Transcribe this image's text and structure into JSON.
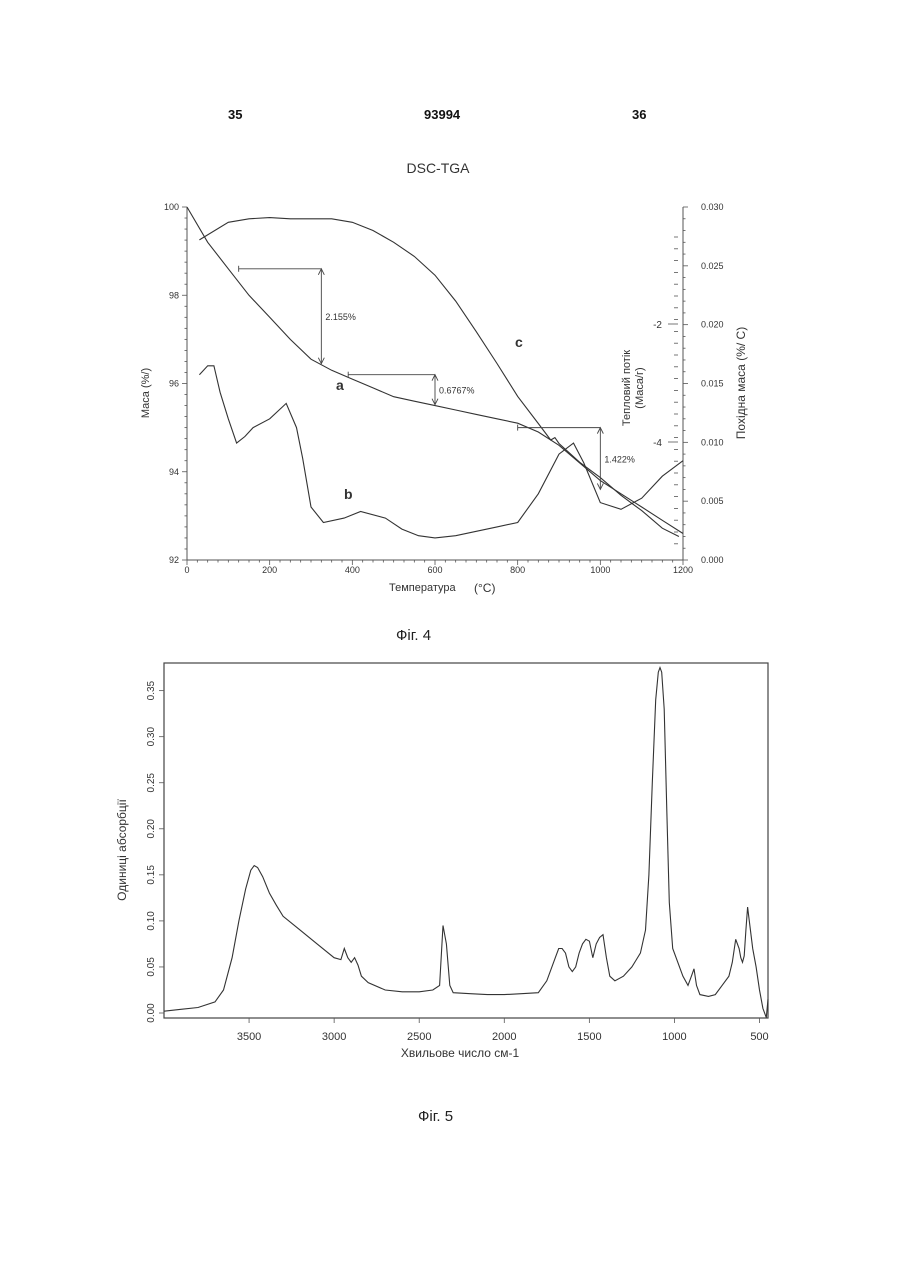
{
  "header": {
    "page_left": "35",
    "doc_number": "93994",
    "page_right": "36"
  },
  "fig4": {
    "caption": "Фiг. 4",
    "title": "DSC-TGA",
    "xlabel": "Температура",
    "xunit": "(°C)",
    "ylabel_left": "Маса (%/)",
    "ylabel_mid": "Тепловий потік (Маса/г)",
    "ylabel_right": "Похідна маса (%/ C)",
    "x_ticks": [
      "0",
      "200",
      "400",
      "600",
      "800",
      "1000",
      "1200"
    ],
    "y_left_ticks": [
      "100",
      "98",
      "96",
      "94",
      "92"
    ],
    "y_right_ticks": [
      "0.030",
      "0.025",
      "0.020",
      "0.015",
      "0.010",
      "0.005",
      "0.000"
    ],
    "y_mid_ticks": [
      "-2",
      "-4"
    ],
    "curve_labels": [
      "a",
      "b",
      "c"
    ],
    "annotations": [
      "2.155%",
      "0.6767%",
      "1.422%"
    ]
  },
  "fig5": {
    "caption": "Фiг. 5",
    "xlabel": "Хвильове число см-1",
    "ylabel": "Одиниці абсорбції",
    "x_ticks": [
      "3500",
      "3000",
      "2500",
      "2000",
      "1500",
      "1000",
      "500"
    ],
    "y_ticks": [
      "0.00",
      "0.05",
      "0.10",
      "0.15",
      "0.20",
      "0.25",
      "0.30",
      "0.35"
    ]
  },
  "chart_data": [
    {
      "type": "line",
      "title": "DSC-TGA",
      "xlabel": "Температура (°C)",
      "ylabel": "Маса (%/)",
      "xlim": [
        0,
        1200
      ],
      "ylim": [
        92,
        100
      ],
      "y2label": "Похідна маса (%/ C)",
      "y2lim": [
        0,
        0.03
      ],
      "series": [
        {
          "name": "a",
          "x": [
            0,
            50,
            100,
            150,
            200,
            250,
            300,
            350,
            400,
            450,
            500,
            550,
            600,
            650,
            700,
            750,
            800,
            850,
            900,
            950,
            1000,
            1050,
            1100,
            1150,
            1200
          ],
          "y": [
            100.0,
            99.2,
            98.6,
            98.0,
            97.5,
            97.0,
            96.55,
            96.3,
            96.1,
            95.9,
            95.7,
            95.6,
            95.5,
            95.4,
            95.3,
            95.2,
            95.1,
            94.9,
            94.6,
            94.2,
            93.8,
            93.5,
            93.2,
            92.9,
            92.6
          ]
        },
        {
          "name": "c",
          "x": [
            30,
            100,
            150,
            200,
            250,
            300,
            350,
            400,
            450,
            500,
            550,
            600,
            650,
            700,
            750,
            800,
            850,
            880,
            890,
            900,
            950,
            1000,
            1050,
            1100,
            1150,
            1190
          ],
          "y2": [
            0.0272,
            0.0287,
            0.029,
            0.0291,
            0.029,
            0.029,
            0.029,
            0.0287,
            0.028,
            0.027,
            0.0258,
            0.0242,
            0.022,
            0.0194,
            0.0167,
            0.0139,
            0.0116,
            0.0102,
            0.0104,
            0.0099,
            0.0083,
            0.007,
            0.0055,
            0.0042,
            0.0027,
            0.002
          ]
        },
        {
          "name": "b",
          "x": [
            30,
            50,
            65,
            80,
            100,
            120,
            140,
            160,
            200,
            240,
            265,
            280,
            300,
            330,
            380,
            420,
            480,
            520,
            560,
            600,
            650,
            700,
            750,
            800,
            850,
            900,
            935,
            960,
            1000,
            1050,
            1100,
            1150,
            1200
          ],
          "y": [
            96.2,
            96.4,
            96.4,
            95.8,
            95.2,
            94.65,
            94.8,
            95.0,
            95.2,
            95.55,
            95.0,
            94.3,
            93.2,
            92.85,
            92.95,
            93.1,
            92.95,
            92.7,
            92.55,
            92.5,
            92.55,
            92.65,
            92.75,
            92.85,
            93.5,
            94.4,
            94.65,
            94.2,
            93.3,
            93.15,
            93.4,
            93.9,
            94.25
          ]
        }
      ],
      "steps": [
        {
          "label": "2.155%",
          "x_from": 125,
          "x_to": 325,
          "y_from": 98.6,
          "y_to": 96.45
        },
        {
          "label": "0.6767%",
          "x_from": 390,
          "x_to": 600,
          "y_from": 96.2,
          "y_to": 95.52
        },
        {
          "label": "1.422%",
          "x_from": 800,
          "x_to": 1000,
          "y_from": 95.0,
          "y_to": 93.6
        }
      ],
      "grid": false
    },
    {
      "type": "line",
      "title": "",
      "xlabel": "Хвильове число см-1",
      "ylabel": "Одиниці абсорбції",
      "xlim": [
        4000,
        450
      ],
      "ylim": [
        0,
        0.38
      ],
      "x": [
        4000,
        3900,
        3800,
        3700,
        3650,
        3600,
        3560,
        3520,
        3490,
        3470,
        3450,
        3420,
        3380,
        3340,
        3300,
        3200,
        3100,
        3000,
        2960,
        2940,
        2920,
        2900,
        2880,
        2860,
        2840,
        2800,
        2700,
        2600,
        2500,
        2420,
        2380,
        2360,
        2350,
        2340,
        2320,
        2300,
        2200,
        2100,
        2000,
        1900,
        1800,
        1750,
        1700,
        1680,
        1660,
        1640,
        1620,
        1600,
        1580,
        1560,
        1540,
        1520,
        1500,
        1480,
        1460,
        1440,
        1420,
        1400,
        1380,
        1350,
        1300,
        1250,
        1200,
        1170,
        1150,
        1130,
        1110,
        1095,
        1085,
        1075,
        1060,
        1045,
        1030,
        1010,
        990,
        970,
        950,
        920,
        900,
        885,
        870,
        850,
        800,
        760,
        720,
        680,
        660,
        640,
        620,
        610,
        600,
        590,
        580,
        570,
        560,
        540,
        520,
        500,
        480,
        460,
        450
      ],
      "y": [
        0.002,
        0.004,
        0.006,
        0.012,
        0.025,
        0.06,
        0.1,
        0.135,
        0.155,
        0.16,
        0.158,
        0.148,
        0.13,
        0.117,
        0.105,
        0.09,
        0.075,
        0.06,
        0.058,
        0.07,
        0.06,
        0.055,
        0.06,
        0.052,
        0.04,
        0.033,
        0.025,
        0.023,
        0.023,
        0.025,
        0.03,
        0.095,
        0.085,
        0.075,
        0.03,
        0.022,
        0.021,
        0.02,
        0.02,
        0.021,
        0.022,
        0.035,
        0.06,
        0.07,
        0.07,
        0.065,
        0.05,
        0.045,
        0.05,
        0.065,
        0.075,
        0.08,
        0.078,
        0.06,
        0.075,
        0.082,
        0.085,
        0.06,
        0.04,
        0.035,
        0.04,
        0.05,
        0.065,
        0.09,
        0.15,
        0.25,
        0.34,
        0.37,
        0.375,
        0.37,
        0.33,
        0.22,
        0.12,
        0.07,
        0.06,
        0.05,
        0.04,
        0.03,
        0.04,
        0.048,
        0.03,
        0.02,
        0.018,
        0.02,
        0.03,
        0.04,
        0.055,
        0.08,
        0.07,
        0.06,
        0.055,
        0.062,
        0.09,
        0.115,
        0.1,
        0.07,
        0.05,
        0.025,
        0.005,
        -0.005,
        0.015
      ]
    }
  ]
}
